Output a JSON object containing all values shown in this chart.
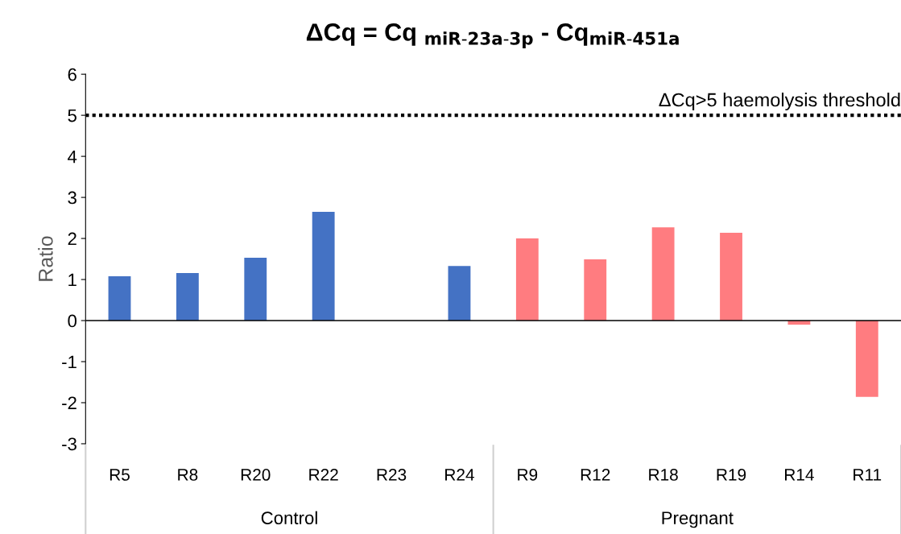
{
  "chart_data": {
    "type": "bar",
    "title": "ΔCq = Cq $_{miR-23a-3p}$ - Cq$_{miR-451a}$",
    "ylabel": "Ratio",
    "categories": [
      "R5",
      "R8",
      "R20",
      "R22",
      "R23",
      "R24",
      "R9",
      "R12",
      "R18",
      "R19",
      "R14",
      "R11"
    ],
    "values": [
      1.08,
      1.16,
      1.53,
      2.65,
      0,
      1.33,
      2.0,
      1.49,
      2.27,
      2.14,
      -0.1,
      -1.86
    ],
    "colors": [
      "#4472c4",
      "#4472c4",
      "#4472c4",
      "#4472c4",
      "#4472c4",
      "#4472c4",
      "#ff7c80",
      "#ff7c80",
      "#ff7c80",
      "#ff7c80",
      "#ff7c80",
      "#ff7c80"
    ],
    "annotations": [
      "Control",
      "Pregnant"
    ],
    "ylim": [
      -3,
      6
    ],
    "yticks": [
      -3,
      -2,
      -1,
      0,
      1,
      2,
      3,
      4,
      5,
      6
    ],
    "ref_lines": [
      {
        "axis": "y",
        "value": 5,
        "label": "ΔCq>5 haemolysis threshold",
        "color": "#000000",
        "line_style": "dotted"
      }
    ],
    "grid": false
  }
}
